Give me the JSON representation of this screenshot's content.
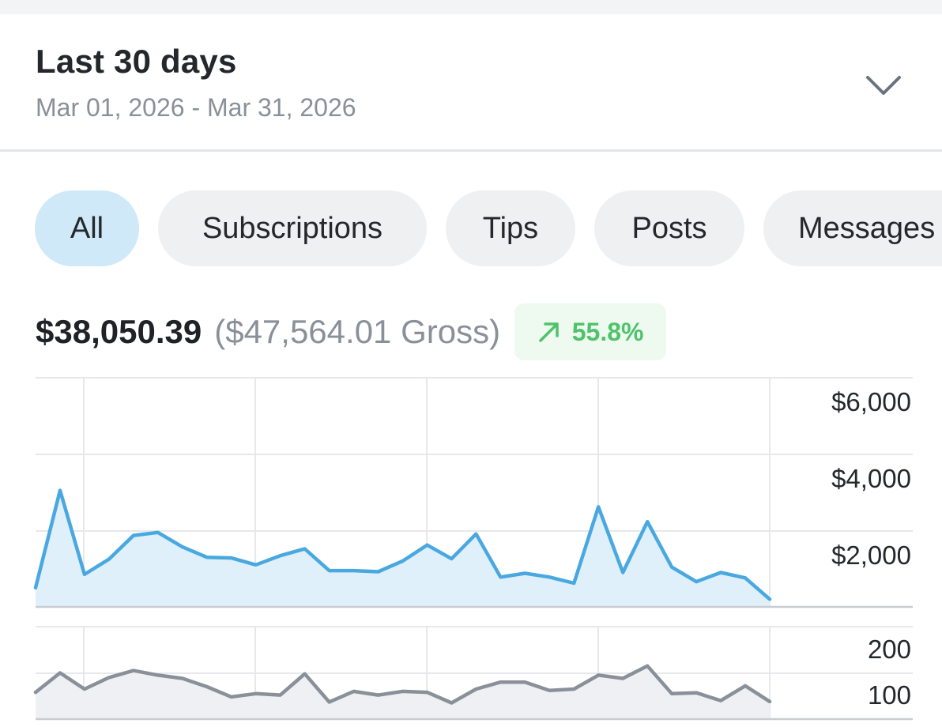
{
  "range": {
    "title": "Last 30 days",
    "dates": "Mar 01, 2026 - Mar 31, 2026",
    "dropdown_icon": "chevron-down-icon"
  },
  "tabs": [
    {
      "label": "All",
      "active": true
    },
    {
      "label": "Subscriptions",
      "active": false
    },
    {
      "label": "Tips",
      "active": false
    },
    {
      "label": "Posts",
      "active": false
    },
    {
      "label": "Messages",
      "active": false
    }
  ],
  "summary": {
    "net": "$38,050.39",
    "gross": "($47,564.01 Gross)",
    "change": "55.8%",
    "change_icon": "trend-up-arrow-icon",
    "change_color": "#4fc26a"
  },
  "colors": {
    "accent": "#4aa8e0",
    "accent_fill": "#dff0fb",
    "secondary": "#8a9099",
    "secondary_fill": "#eef0f3"
  },
  "chart_data": [
    {
      "type": "area",
      "x": [
        1,
        2,
        3,
        4,
        5,
        6,
        7,
        8,
        9,
        10,
        11,
        12,
        13,
        14,
        15,
        16,
        17,
        18,
        19,
        20,
        21,
        22,
        23,
        24,
        25,
        26,
        27,
        28,
        29,
        30,
        31
      ],
      "series": [
        {
          "values": [
            500,
            3050,
            850,
            1250,
            1870,
            1950,
            1570,
            1300,
            1280,
            1100,
            1340,
            1520,
            950,
            950,
            920,
            1200,
            1620,
            1260,
            1910,
            780,
            880,
            780,
            620,
            2620,
            900,
            2230,
            1040,
            660,
            900,
            760,
            200
          ]
        }
      ],
      "y_ticks": [
        "$2,000",
        "$4,000",
        "$6,000"
      ],
      "ylim": [
        0,
        6000
      ],
      "grid": true
    },
    {
      "type": "area",
      "x": [
        1,
        2,
        3,
        4,
        5,
        6,
        7,
        8,
        9,
        10,
        11,
        12,
        13,
        14,
        15,
        16,
        17,
        18,
        19,
        20,
        21,
        22,
        23,
        24,
        25,
        26,
        27,
        28,
        29,
        30,
        31
      ],
      "series": [
        {
          "values": [
            58,
            100,
            65,
            90,
            105,
            95,
            88,
            70,
            48,
            55,
            52,
            98,
            37,
            60,
            52,
            60,
            58,
            35,
            65,
            80,
            80,
            62,
            65,
            95,
            88,
            115,
            55,
            57,
            40,
            72,
            38
          ]
        }
      ],
      "y_ticks": [
        "100",
        "200"
      ],
      "ylim": [
        0,
        200
      ],
      "grid": true
    }
  ]
}
